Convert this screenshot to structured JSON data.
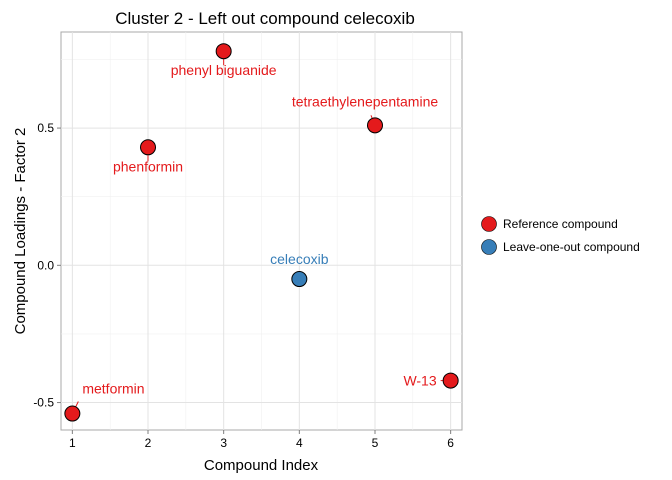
{
  "chart_data": {
    "type": "scatter",
    "title": "Cluster 2 - Left out compound celecoxib",
    "xlabel": "Compound Index",
    "ylabel": "Compound Loadings - Factor 2",
    "xlim": [
      0.85,
      6.15
    ],
    "ylim": [
      -0.6,
      0.85
    ],
    "x_ticks": [
      1,
      2,
      3,
      4,
      5,
      6
    ],
    "x_tick_labels": [
      "1",
      "2",
      "3",
      "4",
      "5",
      "6"
    ],
    "y_ticks": [
      -0.5,
      0.0,
      0.5
    ],
    "y_tick_labels": [
      "-0.5",
      "0.0",
      "0.5"
    ],
    "grid": true,
    "legend_position": "right",
    "colors": {
      "reference": "#e41a1c",
      "leave_one_out": "#377eb8"
    },
    "series": [
      {
        "name": "Reference compound",
        "color": "#e41a1c",
        "points": [
          {
            "x": 1,
            "y": -0.54,
            "label": "metformin"
          },
          {
            "x": 2,
            "y": 0.43,
            "label": "phenformin"
          },
          {
            "x": 3,
            "y": 0.78,
            "label": "phenyl biguanide"
          },
          {
            "x": 5,
            "y": 0.51,
            "label": "tetraethylenepentamine"
          },
          {
            "x": 6,
            "y": -0.42,
            "label": "W-13"
          }
        ]
      },
      {
        "name": "Leave-one-out compound",
        "color": "#377eb8",
        "points": [
          {
            "x": 4,
            "y": -0.05,
            "label": "celecoxib"
          }
        ]
      }
    ]
  }
}
